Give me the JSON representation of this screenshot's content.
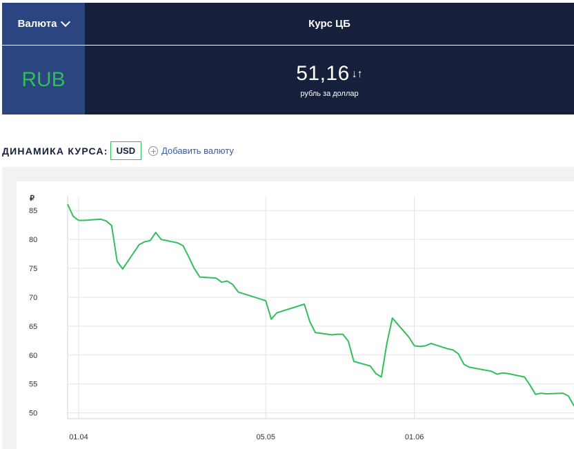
{
  "header": {
    "currency_dropdown_label": "Валюта",
    "rate_header": "Курс ЦБ"
  },
  "rate_panel": {
    "currency_code": "RUB",
    "value": "51,16",
    "arrows": "↓↑",
    "unit_caption": "рубль за доллар"
  },
  "dynamics": {
    "title": "ДИНАМИКА КУРСА:",
    "selected_currency": "USD",
    "add_currency_label": "Добавить валюту"
  },
  "colors": {
    "navy_dark": "#16203a",
    "navy_blue": "#2b4580",
    "green": "#2fbf5a"
  },
  "chart_data": {
    "type": "line",
    "title": "",
    "ylabel": "₽",
    "xlabel": "",
    "ylim": [
      49,
      86.7
    ],
    "yticks": [
      50,
      55,
      60,
      65,
      70,
      75,
      80,
      85
    ],
    "ytick_labels": [
      "50",
      "55",
      "60",
      "65",
      "70",
      "75",
      "80",
      "85"
    ],
    "x_range": [
      "2022-03-30",
      "2022-06-30"
    ],
    "xticks": [
      {
        "date": "2022-04-01",
        "label": "01.04"
      },
      {
        "date": "2022-05-05",
        "label": "05.05"
      },
      {
        "date": "2022-06-01",
        "label": "01.06"
      }
    ],
    "grid": true,
    "series": [
      {
        "name": "",
        "color": "#2fbf5a",
        "points": [
          [
            "2022-03-30",
            86.1
          ],
          [
            "2022-03-31",
            84.0
          ],
          [
            "2022-04-01",
            83.3
          ],
          [
            "2022-04-02",
            83.3
          ],
          [
            "2022-04-05",
            83.5
          ],
          [
            "2022-04-06",
            83.2
          ],
          [
            "2022-04-07",
            82.4
          ],
          [
            "2022-04-08",
            76.2
          ],
          [
            "2022-04-09",
            74.9
          ],
          [
            "2022-04-12",
            79.1
          ],
          [
            "2022-04-13",
            79.6
          ],
          [
            "2022-04-14",
            79.8
          ],
          [
            "2022-04-15",
            81.2
          ],
          [
            "2022-04-16",
            80.0
          ],
          [
            "2022-04-19",
            79.4
          ],
          [
            "2022-04-20",
            78.9
          ],
          [
            "2022-04-21",
            77.0
          ],
          [
            "2022-04-22",
            75.0
          ],
          [
            "2022-04-23",
            73.5
          ],
          [
            "2022-04-26",
            73.3
          ],
          [
            "2022-04-27",
            72.6
          ],
          [
            "2022-04-28",
            72.8
          ],
          [
            "2022-04-29",
            72.2
          ],
          [
            "2022-04-30",
            70.9
          ],
          [
            "2022-05-05",
            69.4
          ],
          [
            "2022-05-06",
            66.2
          ],
          [
            "2022-05-07",
            67.3
          ],
          [
            "2022-05-12",
            68.8
          ],
          [
            "2022-05-13",
            65.8
          ],
          [
            "2022-05-14",
            63.9
          ],
          [
            "2022-05-17",
            63.5
          ],
          [
            "2022-05-18",
            63.6
          ],
          [
            "2022-05-19",
            63.6
          ],
          [
            "2022-05-20",
            62.4
          ],
          [
            "2022-05-21",
            58.9
          ],
          [
            "2022-05-24",
            58.1
          ],
          [
            "2022-05-25",
            56.8
          ],
          [
            "2022-05-26",
            56.2
          ],
          [
            "2022-05-27",
            62.0
          ],
          [
            "2022-05-28",
            66.4
          ],
          [
            "2022-05-31",
            63.1
          ],
          [
            "2022-06-01",
            61.6
          ],
          [
            "2022-06-02",
            61.5
          ],
          [
            "2022-06-03",
            61.6
          ],
          [
            "2022-06-04",
            62.0
          ],
          [
            "2022-06-07",
            61.1
          ],
          [
            "2022-06-08",
            60.9
          ],
          [
            "2022-06-09",
            60.2
          ],
          [
            "2022-06-10",
            58.4
          ],
          [
            "2022-06-11",
            57.9
          ],
          [
            "2022-06-15",
            57.2
          ],
          [
            "2022-06-16",
            56.7
          ],
          [
            "2022-06-17",
            56.9
          ],
          [
            "2022-06-18",
            56.8
          ],
          [
            "2022-06-21",
            56.2
          ],
          [
            "2022-06-22",
            54.8
          ],
          [
            "2022-06-23",
            53.2
          ],
          [
            "2022-06-24",
            53.4
          ],
          [
            "2022-06-25",
            53.3
          ],
          [
            "2022-06-28",
            53.4
          ],
          [
            "2022-06-29",
            52.9
          ],
          [
            "2022-06-30",
            51.2
          ]
        ]
      }
    ]
  }
}
